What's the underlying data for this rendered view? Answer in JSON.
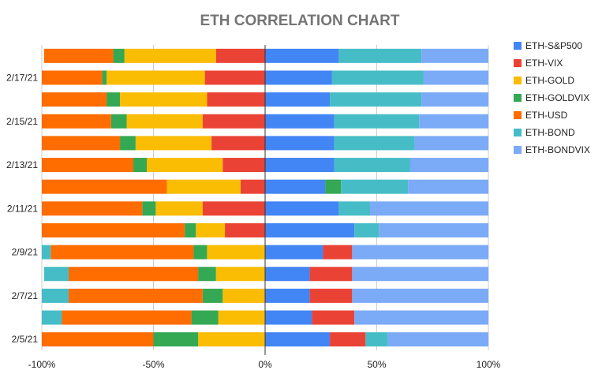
{
  "chart_data": {
    "type": "bar",
    "orientation": "horizontal",
    "stacked": true,
    "title": "ETH CORRELATION CHART",
    "xlabel": "",
    "ylabel": "",
    "xlim": [
      -1,
      1
    ],
    "x_ticks": [
      "-100%",
      "-50%",
      "0%",
      "50%",
      "100%"
    ],
    "grid": true,
    "legend_position": "right",
    "categories": [
      "",
      "2/17/21",
      "",
      "2/15/21",
      "",
      "2/13/21",
      "",
      "2/11/21",
      "",
      "2/9/21",
      "",
      "2/7/21",
      "",
      "2/5/21"
    ],
    "series": [
      {
        "name": "ETH-S&P500",
        "color": "#4285f4",
        "values": [
          0.33,
          0.3,
          0.29,
          0.31,
          0.31,
          0.31,
          0.27,
          0.33,
          0.4,
          0.26,
          0.2,
          0.2,
          0.21,
          0.29
        ]
      },
      {
        "name": "ETH-VIX",
        "color": "#ea4335",
        "values": [
          -0.22,
          -0.27,
          -0.26,
          -0.28,
          -0.24,
          -0.19,
          -0.11,
          -0.28,
          -0.18,
          0.13,
          0.19,
          0.19,
          0.19,
          0.16
        ]
      },
      {
        "name": "ETH-GOLD",
        "color": "#fbbc04",
        "values": [
          -0.41,
          -0.44,
          -0.39,
          -0.34,
          -0.34,
          -0.34,
          -0.33,
          -0.21,
          -0.13,
          -0.26,
          -0.22,
          -0.19,
          -0.21,
          -0.3
        ]
      },
      {
        "name": "ETH-GOLDVIX",
        "color": "#34a853",
        "values": [
          -0.05,
          -0.02,
          -0.06,
          -0.07,
          -0.07,
          -0.06,
          0.07,
          -0.06,
          -0.05,
          -0.06,
          -0.08,
          -0.09,
          -0.12,
          -0.2
        ]
      },
      {
        "name": "ETH-USD",
        "color": "#ff6d01",
        "values": [
          -0.31,
          -0.27,
          -0.29,
          -0.31,
          -0.35,
          -0.41,
          -0.56,
          -0.45,
          -0.64,
          -0.64,
          -0.58,
          -0.6,
          -0.58,
          -0.5
        ]
      },
      {
        "name": "ETH-BOND",
        "color": "#46bdc6",
        "values": [
          0.37,
          0.41,
          0.41,
          0.38,
          0.36,
          0.34,
          0.3,
          0.14,
          0.11,
          -0.04,
          -0.11,
          -0.12,
          -0.09,
          0.1
        ]
      },
      {
        "name": "ETH-BONDVIX",
        "color": "#7baaf7",
        "values": [
          0.3,
          0.29,
          0.3,
          0.31,
          0.33,
          0.35,
          0.36,
          0.53,
          0.49,
          0.61,
          0.61,
          0.61,
          0.6,
          0.45
        ]
      }
    ]
  }
}
